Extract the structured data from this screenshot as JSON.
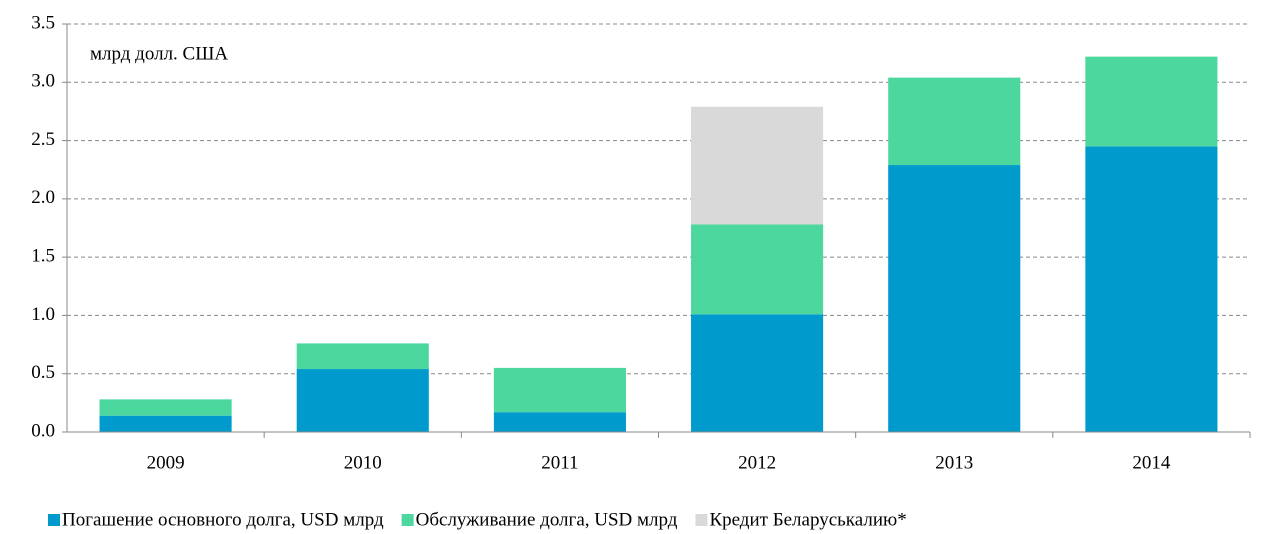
{
  "chart_data": {
    "type": "stacked_bar",
    "annotation": "млрд долл. США",
    "categories": [
      "2009",
      "2010",
      "2011",
      "2012",
      "2013",
      "2014"
    ],
    "series": [
      {
        "name": "Погашение основного долга, USD млрд",
        "color": "#009bcc",
        "values": [
          0.14,
          0.54,
          0.17,
          1.01,
          2.29,
          2.45
        ]
      },
      {
        "name": "Обслуживание долга, USD млрд",
        "color": "#4cd79f",
        "values": [
          0.14,
          0.22,
          0.38,
          0.77,
          0.75,
          0.77
        ]
      },
      {
        "name": "Кредит Беларуськалию*",
        "color": "#d9d9d9",
        "values": [
          0,
          0,
          0,
          1.01,
          0,
          0
        ]
      }
    ],
    "ylim": [
      0,
      3.5
    ],
    "yticks": [
      {
        "value": 0,
        "label": "0.0"
      },
      0.5,
      {
        "value": 1,
        "label": "1.0"
      },
      1.5,
      {
        "value": 2,
        "label": "2.0"
      },
      2.5,
      {
        "value": 3,
        "label": "3.0"
      },
      3.5
    ],
    "grid": true
  }
}
